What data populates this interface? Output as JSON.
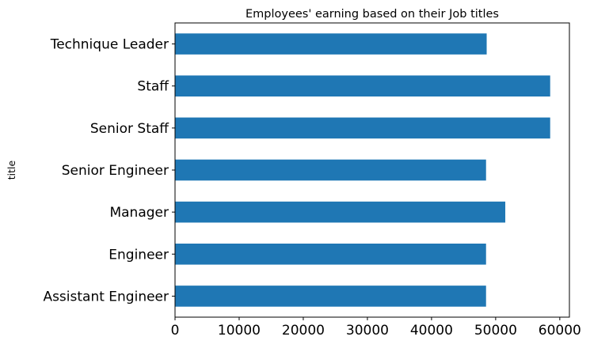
{
  "chart_data": {
    "type": "bar",
    "orientation": "horizontal",
    "title": "Employees' earning based on their Job titles",
    "xlabel": "",
    "ylabel": "title",
    "categories": [
      "Assistant Engineer",
      "Engineer",
      "Manager",
      "Senior Engineer",
      "Senior Staff",
      "Staff",
      "Technique Leader"
    ],
    "values": [
      48500,
      48500,
      51500,
      48500,
      58500,
      58500,
      48600
    ],
    "xlim": [
      0,
      61500
    ],
    "xticks": [
      "0",
      "10000",
      "20000",
      "30000",
      "40000",
      "50000",
      "60000"
    ],
    "grid": false,
    "legend": "none",
    "bar_color": "#1f77b4"
  }
}
